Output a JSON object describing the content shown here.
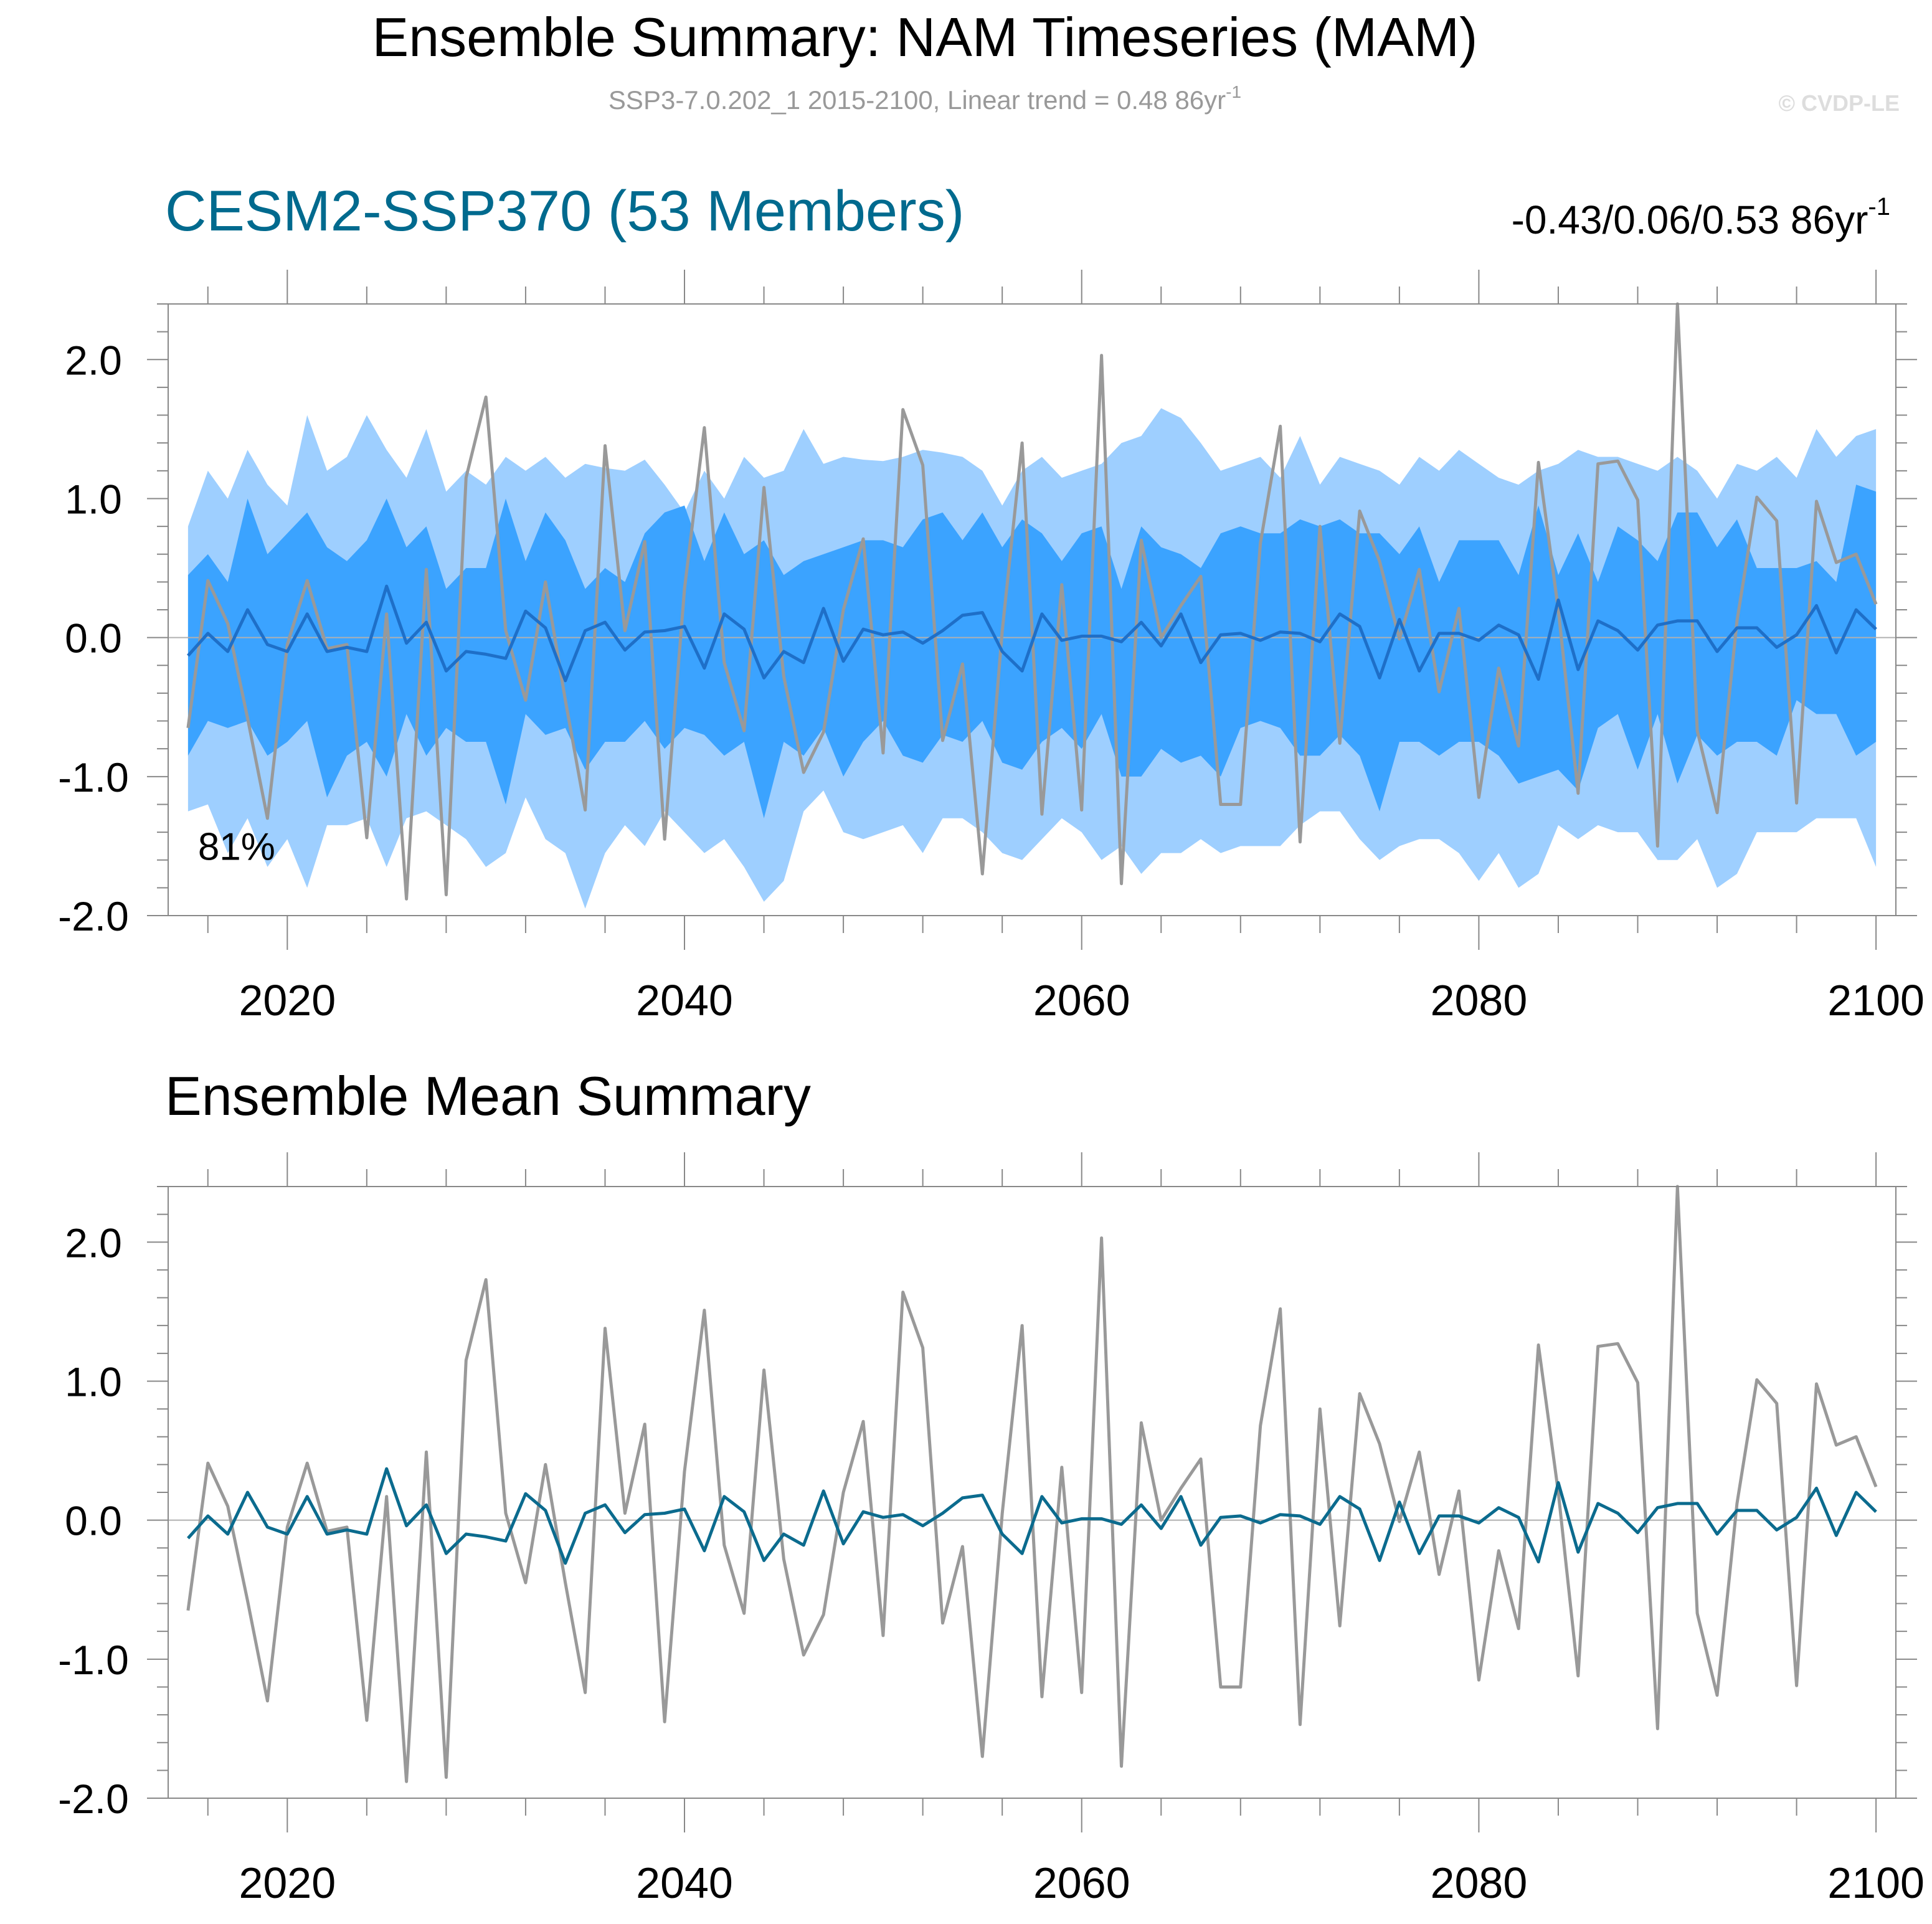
{
  "header": {
    "title": "Ensemble Summary: NAM Timeseries (MAM)",
    "subtitle": "SSP3-7.0.202_1 2015-2100, Linear trend = 0.48 86yr",
    "subtitle_sup": "-1",
    "watermark": "© CVDP-LE"
  },
  "colors": {
    "ensemble_mean": "#1e6fc8",
    "member_line": "#999999",
    "band_outer": "#9ecfff",
    "band_inner": "#3ba3ff",
    "panel_title": "#006a8e",
    "bottom_mean": "#0b6b8e",
    "axis": "#555555"
  },
  "chart_data": [
    {
      "type": "area",
      "title": "CESM2-SSP370 (53 Members)",
      "trend_label": "-0.43/0.06/0.53 86yr",
      "trend_sup": "-1",
      "annotation": "81%",
      "xlabel": "",
      "ylabel": "",
      "xlim": [
        2014,
        2101
      ],
      "ylim": [
        -2.0,
        2.4
      ],
      "xticks": [
        "2020",
        "2040",
        "2060",
        "2080",
        "2100"
      ],
      "yticks": [
        "2.0",
        "1.0",
        "0.0",
        "-1.0",
        "-2.0"
      ],
      "grid": false,
      "zero_line": true,
      "x": [
        2015,
        2016,
        2017,
        2018,
        2019,
        2020,
        2021,
        2022,
        2023,
        2024,
        2025,
        2026,
        2027,
        2028,
        2029,
        2030,
        2031,
        2032,
        2033,
        2034,
        2035,
        2036,
        2037,
        2038,
        2039,
        2040,
        2041,
        2042,
        2043,
        2044,
        2045,
        2046,
        2047,
        2048,
        2049,
        2050,
        2051,
        2052,
        2053,
        2054,
        2055,
        2056,
        2057,
        2058,
        2059,
        2060,
        2061,
        2062,
        2063,
        2064,
        2065,
        2066,
        2067,
        2068,
        2069,
        2070,
        2071,
        2072,
        2073,
        2074,
        2075,
        2076,
        2077,
        2078,
        2079,
        2080,
        2081,
        2082,
        2083,
        2084,
        2085,
        2086,
        2087,
        2088,
        2089,
        2090,
        2091,
        2092,
        2093,
        2094,
        2095,
        2096,
        2097,
        2098,
        2099,
        2100
      ],
      "series": [
        {
          "name": "",
          "role": "band_outer_upper",
          "values": [
            0.8,
            1.2,
            1.0,
            1.35,
            1.1,
            0.95,
            1.6,
            1.2,
            1.3,
            1.6,
            1.35,
            1.15,
            1.5,
            1.05,
            1.2,
            1.1,
            1.3,
            1.2,
            1.3,
            1.15,
            1.25,
            1.22,
            1.2,
            1.28,
            1.1,
            0.9,
            1.2,
            1.0,
            1.3,
            1.15,
            1.2,
            1.5,
            1.25,
            1.3,
            1.28,
            1.27,
            1.3,
            1.35,
            1.33,
            1.3,
            1.2,
            0.95,
            1.2,
            1.3,
            1.15,
            1.2,
            1.25,
            1.4,
            1.45,
            1.65,
            1.58,
            1.4,
            1.2,
            1.25,
            1.3,
            1.15,
            1.45,
            1.1,
            1.3,
            1.25,
            1.2,
            1.1,
            1.3,
            1.2,
            1.35,
            1.25,
            1.15,
            1.1,
            1.2,
            1.25,
            1.35,
            1.3,
            1.3,
            1.25,
            1.2,
            1.3,
            1.2,
            1.0,
            1.25,
            1.2,
            1.3,
            1.15,
            1.5,
            1.3,
            1.45,
            1.5
          ]
        },
        {
          "name": "",
          "role": "band_inner_upper",
          "values": [
            0.45,
            0.6,
            0.4,
            1.0,
            0.6,
            0.75,
            0.9,
            0.65,
            0.55,
            0.7,
            1.0,
            0.65,
            0.8,
            0.35,
            0.5,
            0.5,
            1.0,
            0.55,
            0.9,
            0.7,
            0.35,
            0.5,
            0.4,
            0.75,
            0.9,
            0.95,
            0.55,
            0.9,
            0.6,
            0.7,
            0.45,
            0.55,
            0.6,
            0.65,
            0.7,
            0.7,
            0.65,
            0.85,
            0.9,
            0.7,
            0.9,
            0.65,
            0.85,
            0.75,
            0.55,
            0.75,
            0.8,
            0.35,
            0.8,
            0.65,
            0.6,
            0.5,
            0.75,
            0.8,
            0.75,
            0.75,
            0.85,
            0.8,
            0.85,
            0.75,
            0.75,
            0.6,
            0.8,
            0.4,
            0.7,
            0.7,
            0.7,
            0.45,
            0.95,
            0.45,
            0.75,
            0.4,
            0.8,
            0.7,
            0.55,
            0.9,
            0.9,
            0.65,
            0.85,
            0.5,
            0.5,
            0.5,
            0.55,
            0.4,
            1.1,
            1.05
          ]
        },
        {
          "name": "",
          "role": "band_inner_lower",
          "values": [
            -0.85,
            -0.6,
            -0.65,
            -0.6,
            -0.85,
            -0.75,
            -0.6,
            -1.15,
            -0.85,
            -0.75,
            -1.0,
            -0.55,
            -0.85,
            -0.65,
            -0.75,
            -0.75,
            -1.2,
            -0.55,
            -0.7,
            -0.65,
            -0.95,
            -0.75,
            -0.75,
            -0.6,
            -0.8,
            -0.65,
            -0.7,
            -0.85,
            -0.75,
            -1.3,
            -0.75,
            -0.85,
            -0.65,
            -1.0,
            -0.75,
            -0.6,
            -0.85,
            -0.9,
            -0.7,
            -0.75,
            -0.6,
            -0.9,
            -0.95,
            -0.75,
            -0.65,
            -0.8,
            -0.55,
            -1.0,
            -1.0,
            -0.8,
            -0.9,
            -0.85,
            -1.0,
            -0.65,
            -0.6,
            -0.65,
            -0.85,
            -0.85,
            -0.7,
            -0.85,
            -1.25,
            -0.75,
            -0.75,
            -0.85,
            -0.75,
            -0.75,
            -0.85,
            -1.05,
            -1.0,
            -0.95,
            -1.1,
            -0.65,
            -0.55,
            -0.95,
            -0.55,
            -1.05,
            -0.7,
            -0.85,
            -0.75,
            -0.75,
            -0.85,
            -0.45,
            -0.55,
            -0.55,
            -0.85,
            -0.75
          ]
        },
        {
          "name": "",
          "role": "band_outer_lower",
          "values": [
            -1.25,
            -1.2,
            -1.55,
            -1.3,
            -1.65,
            -1.45,
            -1.8,
            -1.35,
            -1.35,
            -1.3,
            -1.65,
            -1.3,
            -1.25,
            -1.35,
            -1.45,
            -1.65,
            -1.55,
            -1.15,
            -1.45,
            -1.55,
            -1.95,
            -1.55,
            -1.35,
            -1.5,
            -1.25,
            -1.4,
            -1.55,
            -1.45,
            -1.65,
            -1.9,
            -1.75,
            -1.25,
            -1.1,
            -1.4,
            -1.45,
            -1.4,
            -1.35,
            -1.55,
            -1.3,
            -1.3,
            -1.4,
            -1.55,
            -1.6,
            -1.45,
            -1.3,
            -1.4,
            -1.6,
            -1.5,
            -1.7,
            -1.55,
            -1.55,
            -1.45,
            -1.55,
            -1.5,
            -1.5,
            -1.5,
            -1.35,
            -1.25,
            -1.25,
            -1.45,
            -1.6,
            -1.5,
            -1.45,
            -1.45,
            -1.55,
            -1.75,
            -1.55,
            -1.8,
            -1.7,
            -1.35,
            -1.45,
            -1.35,
            -1.4,
            -1.4,
            -1.6,
            -1.6,
            -1.45,
            -1.8,
            -1.7,
            -1.4,
            -1.4,
            -1.4,
            -1.3,
            -1.3,
            -1.3,
            -1.65
          ]
        },
        {
          "name": "",
          "role": "ensemble_mean",
          "values": [
            -0.13,
            0.03,
            -0.1,
            0.2,
            -0.05,
            -0.1,
            0.17,
            -0.1,
            -0.07,
            -0.1,
            0.37,
            -0.04,
            0.11,
            -0.24,
            -0.1,
            -0.12,
            -0.15,
            0.19,
            0.07,
            -0.31,
            0.05,
            0.11,
            -0.09,
            0.04,
            0.05,
            0.08,
            -0.22,
            0.17,
            0.06,
            -0.29,
            -0.1,
            -0.18,
            0.21,
            -0.17,
            0.06,
            0.02,
            0.04,
            -0.04,
            0.05,
            0.16,
            0.18,
            -0.1,
            -0.24,
            0.17,
            -0.02,
            0.01,
            0.01,
            -0.03,
            0.11,
            -0.06,
            0.17,
            -0.18,
            0.02,
            0.03,
            -0.02,
            0.04,
            0.03,
            -0.03,
            0.17,
            0.08,
            -0.29,
            0.13,
            -0.24,
            0.03,
            0.03,
            -0.02,
            0.09,
            0.02,
            -0.3,
            0.27,
            -0.23,
            0.12,
            0.05,
            -0.09,
            0.09,
            0.12,
            0.12,
            -0.1,
            0.07,
            0.07,
            -0.07,
            0.02,
            0.23,
            -0.11,
            0.2,
            0.06
          ]
        },
        {
          "name": "",
          "role": "member",
          "values": [
            -0.65,
            0.41,
            0.1,
            -0.58,
            -1.3,
            -0.05,
            0.41,
            -0.08,
            -0.05,
            -1.44,
            0.17,
            -1.88,
            0.49,
            -1.85,
            1.15,
            1.73,
            0.05,
            -0.45,
            0.4,
            -0.45,
            -1.24,
            1.38,
            0.05,
            0.69,
            -1.45,
            0.35,
            1.51,
            -0.18,
            -0.67,
            1.08,
            -0.28,
            -0.97,
            -0.68,
            0.2,
            0.71,
            -0.83,
            1.64,
            1.24,
            -0.74,
            -0.19,
            -1.7,
            0.05,
            1.4,
            -1.27,
            0.38,
            -1.24,
            2.03,
            -1.77,
            0.7,
            0.0,
            0.23,
            0.44,
            -1.2,
            -1.2,
            0.68,
            1.52,
            -1.47,
            0.8,
            -0.76,
            0.91,
            0.55,
            -0.01,
            0.49,
            -0.39,
            0.21,
            -1.15,
            -0.22,
            -0.78,
            1.26,
            0.2,
            -1.12,
            1.25,
            1.27,
            0.99,
            -1.5,
            2.4,
            -0.67,
            -1.26,
            0.12,
            1.01,
            0.84,
            -1.19,
            0.98,
            0.54,
            0.6,
            0.24
          ]
        }
      ]
    },
    {
      "type": "line",
      "title": "Ensemble Mean Summary",
      "xlabel": "",
      "ylabel": "",
      "xlim": [
        2014,
        2101
      ],
      "ylim": [
        -2.0,
        2.4
      ],
      "xticks": [
        "2020",
        "2040",
        "2060",
        "2080",
        "2100"
      ],
      "yticks": [
        "2.0",
        "1.0",
        "0.0",
        "-1.0",
        "-2.0"
      ],
      "grid": false,
      "zero_line": true,
      "series_ref": "same x and series as panel 1: ensemble_mean and member"
    }
  ]
}
